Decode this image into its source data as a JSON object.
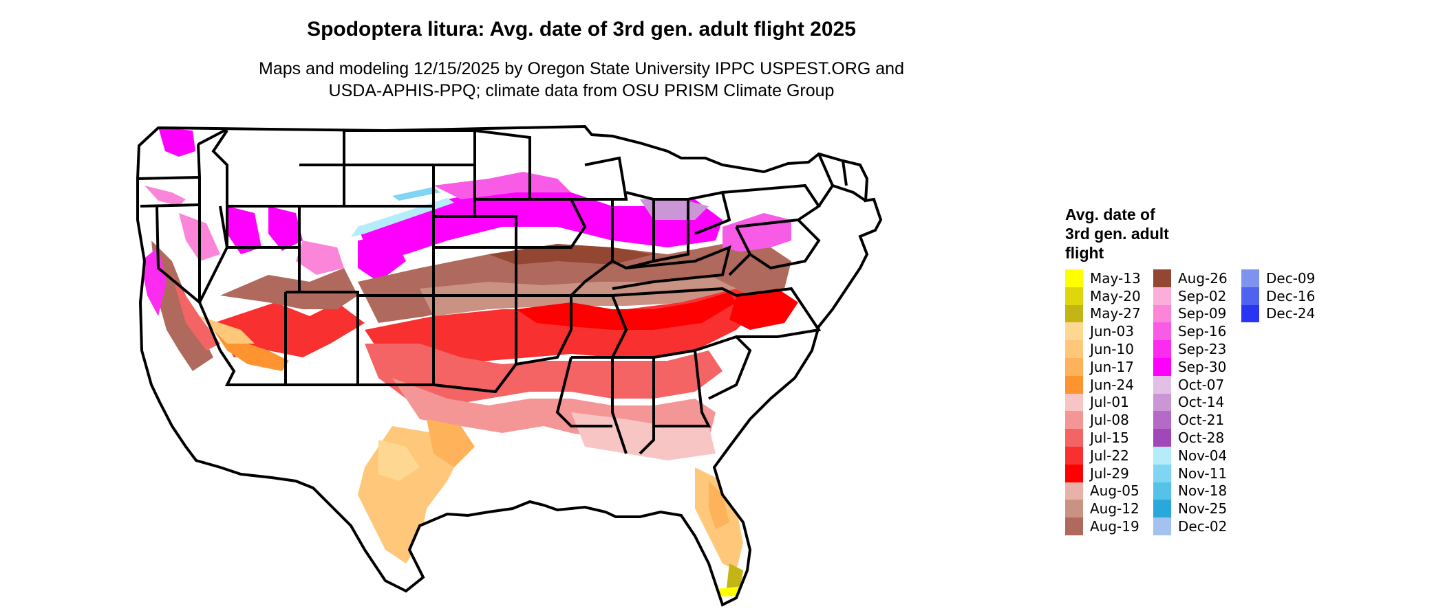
{
  "title": "Spodoptera litura: Avg. date of 3rd gen. adult flight 2025",
  "subtitle_line1": "Maps and modeling 12/15/2025 by Oregon State University IPPC USPEST.ORG and",
  "subtitle_line2": "USDA-APHIS-PPQ; climate data from OSU PRISM Climate Group",
  "legend": {
    "title_lines": [
      "Avg. date of",
      "3rd gen. adult",
      "flight"
    ],
    "columns": [
      [
        {
          "label": "May-13",
          "color": "#ffff00"
        },
        {
          "label": "May-20",
          "color": "#e0d60c"
        },
        {
          "label": "May-27",
          "color": "#c2b514"
        },
        {
          "label": "Jun-03",
          "color": "#fed892"
        },
        {
          "label": "Jun-10",
          "color": "#fec77a"
        },
        {
          "label": "Jun-17",
          "color": "#feb25a"
        },
        {
          "label": "Jun-24",
          "color": "#fe9430"
        },
        {
          "label": "Jul-01",
          "color": "#f8c5c5"
        },
        {
          "label": "Jul-08",
          "color": "#f59696"
        },
        {
          "label": "Jul-15",
          "color": "#f46464"
        },
        {
          "label": "Jul-22",
          "color": "#f83030"
        },
        {
          "label": "Jul-29",
          "color": "#ff0000"
        },
        {
          "label": "Aug-05",
          "color": "#e8b2aa"
        },
        {
          "label": "Aug-12",
          "color": "#c99283"
        },
        {
          "label": "Aug-19",
          "color": "#b06a5d"
        }
      ],
      [
        {
          "label": "Aug-26",
          "color": "#934631"
        },
        {
          "label": "Sep-02",
          "color": "#fcaedb"
        },
        {
          "label": "Sep-09",
          "color": "#fb86d9"
        },
        {
          "label": "Sep-16",
          "color": "#f85ce6"
        },
        {
          "label": "Sep-23",
          "color": "#fb2cf0"
        },
        {
          "label": "Sep-30",
          "color": "#ff00ff"
        },
        {
          "label": "Oct-07",
          "color": "#e2c0e6"
        },
        {
          "label": "Oct-14",
          "color": "#cb96d6"
        },
        {
          "label": "Oct-21",
          "color": "#b56ac8"
        },
        {
          "label": "Oct-28",
          "color": "#a048ba"
        },
        {
          "label": "Nov-04",
          "color": "#b4ecfa"
        },
        {
          "label": "Nov-11",
          "color": "#80d6f2"
        },
        {
          "label": "Nov-18",
          "color": "#56c2ea"
        },
        {
          "label": "Nov-25",
          "color": "#2aa8dc"
        },
        {
          "label": "Dec-02",
          "color": "#a4c2ee"
        }
      ],
      [
        {
          "label": "Dec-09",
          "color": "#7c94f0"
        },
        {
          "label": "Dec-16",
          "color": "#5062f0"
        },
        {
          "label": "Dec-24",
          "color": "#2a34f4"
        }
      ]
    ]
  }
}
